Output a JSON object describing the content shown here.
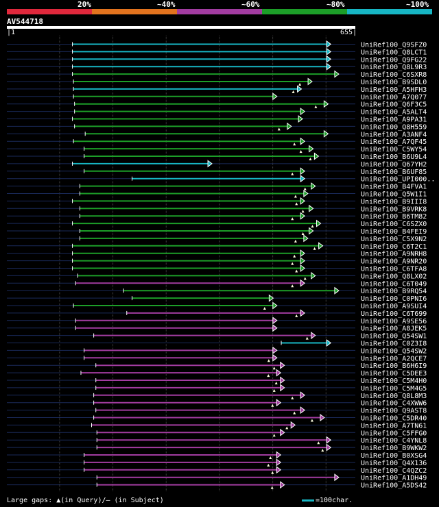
{
  "legend": {
    "segments": [
      {
        "color": "#e0283c"
      },
      {
        "color": "#e2731e"
      },
      {
        "color": "#a23ca0"
      },
      {
        "color": "#1c9e28"
      },
      {
        "color": "#17b6c4"
      }
    ],
    "labels": [
      "20%",
      "~40%",
      "~60%",
      "~80%",
      "~100%"
    ]
  },
  "query": {
    "name": "AV544718",
    "start": "1",
    "end": "655"
  },
  "footer": {
    "text": "Large gaps: ▲(in Query)/– (in Subject)",
    "scale": "=100char."
  },
  "chart_data": {
    "type": "alignment",
    "query_length": 655,
    "title": "AV544718",
    "hits": [
      {
        "label": "UniRef100_Q9SFZ0",
        "start": 124,
        "end": 609,
        "color": "#17b6c4"
      },
      {
        "label": "UniRef100_Q8LCT1",
        "start": 124,
        "end": 609,
        "color": "#17b6c4"
      },
      {
        "label": "UniRef100_Q9FG22",
        "start": 124,
        "end": 609,
        "color": "#17b6c4"
      },
      {
        "label": "UniRef100_Q8L9R3",
        "start": 124,
        "end": 609,
        "color": "#17b6c4"
      },
      {
        "label": "UniRef100_C6SXR8",
        "start": 124,
        "end": 624,
        "color": "#1c9e28"
      },
      {
        "label": "UniRef100_B9SDL0",
        "start": 126,
        "end": 574,
        "color": "#1c9e28"
      },
      {
        "label": "UniRef100_A5HFH3",
        "start": 126,
        "end": 554,
        "color": "#17b6c4"
      },
      {
        "label": "UniRef100_A7Q077",
        "start": 126,
        "end": 508,
        "color": "#1c9e28"
      },
      {
        "label": "UniRef100_Q6F3C5",
        "start": 128,
        "end": 604,
        "color": "#1c9e28"
      },
      {
        "label": "UniRef100_A5ALT4",
        "start": 128,
        "end": 560,
        "color": "#1c9e28"
      },
      {
        "label": "UniRef100_A9PA31",
        "start": 124,
        "end": 556,
        "color": "#1c9e28"
      },
      {
        "label": "UniRef100_Q8H559",
        "start": 128,
        "end": 535,
        "color": "#1c9e28"
      },
      {
        "label": "UniRef100_A3ANF4",
        "start": 148,
        "end": 604,
        "color": "#1c9e28"
      },
      {
        "label": "UniRef100_A7QF45",
        "start": 126,
        "end": 560,
        "color": "#1c9e28"
      },
      {
        "label": "UniRef100_C5WY54",
        "start": 146,
        "end": 576,
        "color": "#1c9e28"
      },
      {
        "label": "UniRef100_B6U9L4",
        "start": 146,
        "end": 586,
        "color": "#1c9e28"
      },
      {
        "label": "UniRef100_Q67YH2",
        "start": 124,
        "end": 386,
        "color": "#17b6c4"
      },
      {
        "label": "UniRef100_B6UF85",
        "start": 146,
        "end": 560,
        "color": "#1c9e28"
      },
      {
        "label": "UniRef100_UPI000..",
        "start": 236,
        "end": 560,
        "color": "#17b6c4"
      },
      {
        "label": "UniRef100_B4FVA1",
        "start": 138,
        "end": 580,
        "color": "#1c9e28"
      },
      {
        "label": "UniRef100_Q5W1I1",
        "start": 138,
        "end": 566,
        "color": "#1c9e28"
      },
      {
        "label": "UniRef100_B9III8",
        "start": 124,
        "end": 560,
        "color": "#1c9e28"
      },
      {
        "label": "UniRef100_B9VRK8",
        "start": 138,
        "end": 576,
        "color": "#1c9e28"
      },
      {
        "label": "UniRef100_B6TM82",
        "start": 138,
        "end": 560,
        "color": "#1c9e28"
      },
      {
        "label": "UniRef100_C6SZX0",
        "start": 124,
        "end": 590,
        "color": "#1c9e28"
      },
      {
        "label": "UniRef100_B4FEI9",
        "start": 138,
        "end": 576,
        "color": "#1c9e28"
      },
      {
        "label": "UniRef100_C5X9N2",
        "start": 138,
        "end": 566,
        "color": "#1c9e28"
      },
      {
        "label": "UniRef100_C6T2C1",
        "start": 124,
        "end": 594,
        "color": "#1c9e28"
      },
      {
        "label": "UniRef100_A9NRH8",
        "start": 124,
        "end": 560,
        "color": "#1c9e28"
      },
      {
        "label": "UniRef100_A9NR20",
        "start": 124,
        "end": 560,
        "color": "#1c9e28"
      },
      {
        "label": "UniRef100_C6TFA8",
        "start": 124,
        "end": 560,
        "color": "#1c9e28"
      },
      {
        "label": "UniRef100_Q8LX02",
        "start": 134,
        "end": 580,
        "color": "#1c9e28"
      },
      {
        "label": "UniRef100_C6T049",
        "start": 130,
        "end": 560,
        "color": "#a23ca0"
      },
      {
        "label": "UniRef100_B9RQ54",
        "start": 220,
        "end": 624,
        "color": "#1c9e28"
      },
      {
        "label": "UniRef100_C0PNI6",
        "start": 236,
        "end": 501,
        "color": "#1c9e28"
      },
      {
        "label": "UniRef100_A9SUI4",
        "start": 126,
        "end": 508,
        "color": "#1c9e28"
      },
      {
        "label": "UniRef100_C6T699",
        "start": 226,
        "end": 560,
        "color": "#a23ca0"
      },
      {
        "label": "UniRef100_A9SE56",
        "start": 130,
        "end": 508,
        "color": "#a23ca0"
      },
      {
        "label": "UniRef100_A8JEK5",
        "start": 130,
        "end": 508,
        "color": "#a23ca0"
      },
      {
        "label": "UniRef100_Q54SW1",
        "start": 164,
        "end": 580,
        "color": "#a23ca0"
      },
      {
        "label": "UniRef100_C0Z3I8",
        "start": 516,
        "end": 609,
        "color": "#17b6c4"
      },
      {
        "label": "UniRef100_Q54SW2",
        "start": 146,
        "end": 508,
        "color": "#a23ca0"
      },
      {
        "label": "UniRef100_A2QCE7",
        "start": 146,
        "end": 508,
        "color": "#a23ca0"
      },
      {
        "label": "UniRef100_B6H6I9",
        "start": 168,
        "end": 522,
        "color": "#a23ca0"
      },
      {
        "label": "UniRef100_C5DEE3",
        "start": 140,
        "end": 515,
        "color": "#a23ca0"
      },
      {
        "label": "UniRef100_C5M4H0",
        "start": 168,
        "end": 522,
        "color": "#a23ca0"
      },
      {
        "label": "UniRef100_C5M4G5",
        "start": 168,
        "end": 522,
        "color": "#a23ca0"
      },
      {
        "label": "UniRef100_Q8L8M3",
        "start": 164,
        "end": 560,
        "color": "#a23ca0"
      },
      {
        "label": "UniRef100_C4XWW6",
        "start": 164,
        "end": 515,
        "color": "#a23ca0"
      },
      {
        "label": "UniRef100_Q9AST8",
        "start": 168,
        "end": 560,
        "color": "#a23ca0"
      },
      {
        "label": "UniRef100_C5DR40",
        "start": 164,
        "end": 597,
        "color": "#a23ca0"
      },
      {
        "label": "UniRef100_A7TN61",
        "start": 160,
        "end": 542,
        "color": "#a23ca0"
      },
      {
        "label": "UniRef100_C5FFG0",
        "start": 170,
        "end": 522,
        "color": "#a23ca0"
      },
      {
        "label": "UniRef100_C4YNL8",
        "start": 170,
        "end": 609,
        "color": "#a23ca0"
      },
      {
        "label": "UniRef100_B9WKW2",
        "start": 170,
        "end": 609,
        "color": "#a23ca0"
      },
      {
        "label": "UniRef100_B0XSG4",
        "start": 146,
        "end": 515,
        "color": "#a23ca0"
      },
      {
        "label": "UniRef100_Q4X136",
        "start": 146,
        "end": 515,
        "color": "#a23ca0"
      },
      {
        "label": "UniRef100_C4QZC2",
        "start": 146,
        "end": 515,
        "color": "#a23ca0"
      },
      {
        "label": "UniRef100_A1DH49",
        "start": 170,
        "end": 624,
        "color": "#a23ca0"
      },
      {
        "label": "UniRef100_A5DS42",
        "start": 170,
        "end": 522,
        "color": "#a23ca0"
      }
    ],
    "gap_marks_query": [
      5,
      6,
      8,
      11,
      13,
      14,
      15,
      17,
      19,
      20,
      21,
      22,
      23,
      24,
      25,
      26,
      27,
      28,
      29,
      30,
      31,
      32,
      35,
      36,
      39,
      42,
      43,
      44,
      45,
      46,
      47,
      48,
      49,
      50,
      51,
      52,
      53,
      54,
      55,
      56,
      57,
      59
    ],
    "xlim": [
      1,
      655
    ]
  }
}
